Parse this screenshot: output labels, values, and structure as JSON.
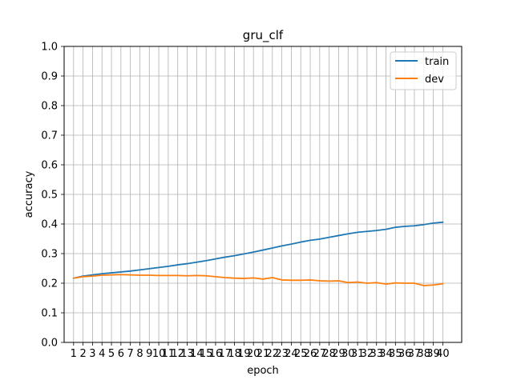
{
  "chart_data": {
    "type": "line",
    "title": "gru_clf",
    "xlabel": "epoch",
    "ylabel": "accuracy",
    "x": [
      1,
      2,
      3,
      4,
      5,
      6,
      7,
      8,
      9,
      10,
      11,
      12,
      13,
      14,
      15,
      16,
      17,
      18,
      19,
      20,
      21,
      22,
      23,
      24,
      25,
      26,
      27,
      28,
      29,
      30,
      31,
      32,
      33,
      34,
      35,
      36,
      37,
      38,
      39,
      40
    ],
    "xlim": [
      0,
      42
    ],
    "ylim": [
      0.0,
      1.0
    ],
    "yticks": [
      "0.0",
      "0.1",
      "0.2",
      "0.3",
      "0.4",
      "0.5",
      "0.6",
      "0.7",
      "0.8",
      "0.9",
      "1.0"
    ],
    "grid": true,
    "legend_position": "top-right",
    "series": [
      {
        "name": "train",
        "color": "#1f77b4",
        "values": [
          0.217,
          0.224,
          0.228,
          0.232,
          0.235,
          0.238,
          0.241,
          0.245,
          0.249,
          0.253,
          0.257,
          0.262,
          0.266,
          0.271,
          0.276,
          0.282,
          0.288,
          0.293,
          0.299,
          0.305,
          0.312,
          0.319,
          0.326,
          0.332,
          0.339,
          0.345,
          0.349,
          0.355,
          0.361,
          0.367,
          0.372,
          0.375,
          0.378,
          0.382,
          0.389,
          0.392,
          0.394,
          0.398,
          0.403,
          0.406
        ]
      },
      {
        "name": "dev",
        "color": "#ff7f0e",
        "values": [
          0.217,
          0.222,
          0.224,
          0.227,
          0.228,
          0.229,
          0.228,
          0.227,
          0.227,
          0.226,
          0.226,
          0.226,
          0.225,
          0.226,
          0.225,
          0.222,
          0.219,
          0.217,
          0.216,
          0.218,
          0.214,
          0.219,
          0.211,
          0.21,
          0.21,
          0.211,
          0.208,
          0.207,
          0.208,
          0.202,
          0.204,
          0.2,
          0.202,
          0.197,
          0.201,
          0.2,
          0.2,
          0.192,
          0.194,
          0.198
        ]
      }
    ]
  }
}
